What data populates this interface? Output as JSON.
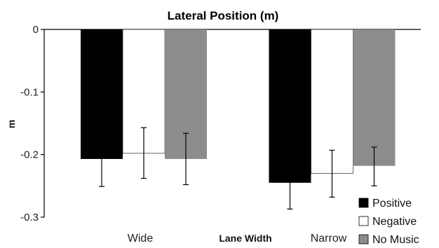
{
  "chart_data": {
    "type": "bar",
    "title": "Lateral Position (m)",
    "xlabel": "Lane Width",
    "ylabel": "m",
    "categories": [
      "Wide",
      "Narrow"
    ],
    "ylim": [
      -0.3,
      0
    ],
    "yticks": [
      0,
      -0.1,
      -0.2,
      -0.3
    ],
    "ytick_labels": [
      "0",
      "-0.1",
      "-0.2",
      "-0.3"
    ],
    "series": [
      {
        "name": "Positive",
        "color": "#000000",
        "values": [
          -0.207,
          -0.245
        ],
        "err_low": [
          -0.251,
          -0.287
        ],
        "err_high": [
          -0.168,
          -0.204
        ]
      },
      {
        "name": "Negative",
        "color": "#ffffff",
        "values": [
          -0.198,
          -0.23
        ],
        "err_low": [
          -0.238,
          -0.268
        ],
        "err_high": [
          -0.157,
          -0.193
        ]
      },
      {
        "name": "No Music",
        "color": "#8c8c8c",
        "values": [
          -0.207,
          -0.218
        ],
        "err_low": [
          -0.248,
          -0.25
        ],
        "err_high": [
          -0.166,
          -0.188
        ]
      }
    ],
    "legend_position": "bottom-right",
    "grid": false
  }
}
